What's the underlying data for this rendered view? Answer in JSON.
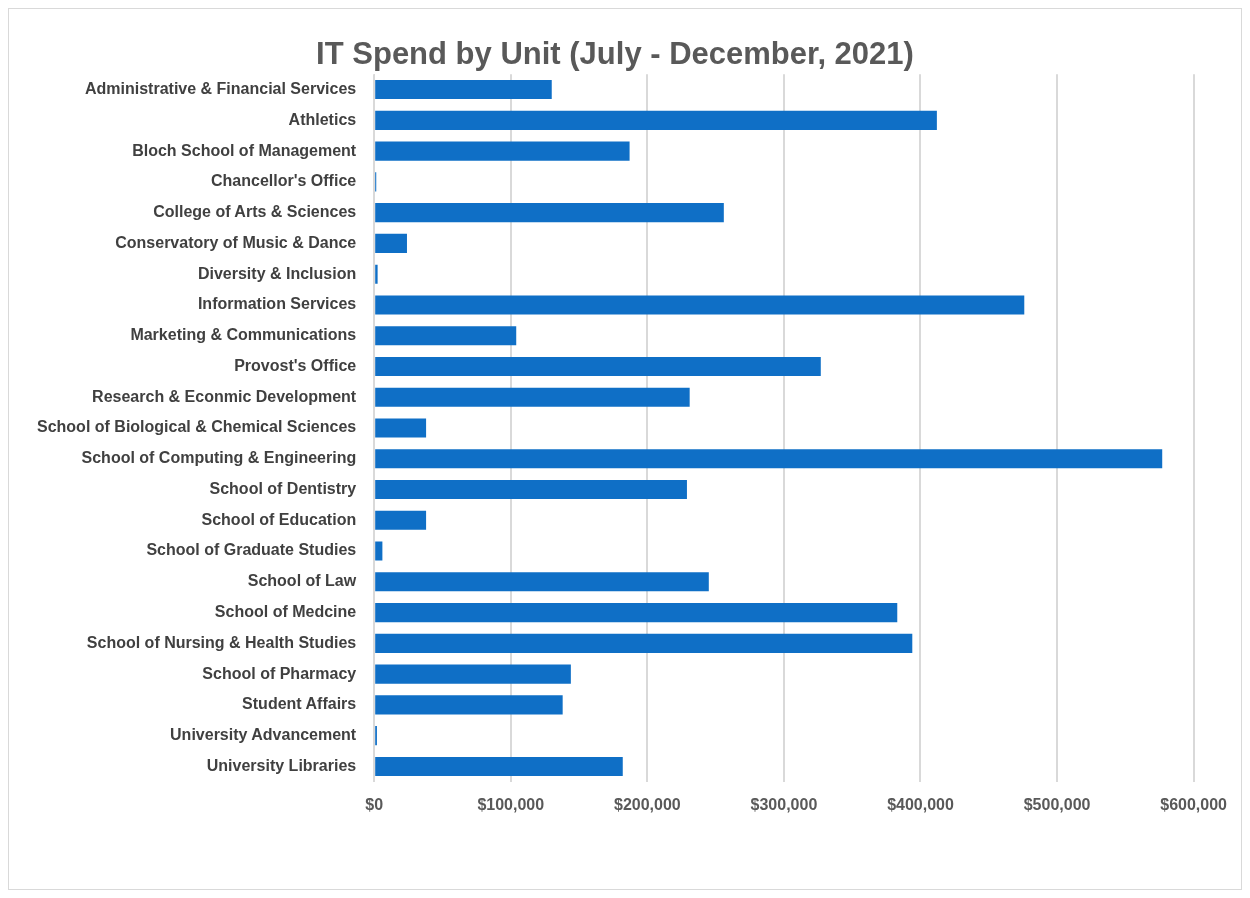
{
  "chart_data": {
    "type": "bar",
    "orientation": "horizontal",
    "title": "IT Spend by Unit (July - December, 2021)",
    "categories": [
      "Administrative & Financial Services",
      "Athletics",
      "Bloch School of Management",
      "Chancellor's Office",
      "College of Arts & Sciences",
      "Conservatory of Music & Dance",
      "Diversity & Inclusion",
      "Information Services",
      "Marketing & Communications",
      "Provost's Office",
      "Research & Econmic Development",
      "School of Biological & Chemical Sciences",
      "School of Computing & Engineering",
      "School of Dentistry",
      "School of Education",
      "School of Graduate Studies",
      "School of Law",
      "School of Medcine",
      "School of Nursing & Health Studies",
      "School of Pharmacy",
      "Student Affairs",
      "University Advancement",
      "University Libraries"
    ],
    "values": [
      130000,
      412000,
      187000,
      1500,
      256000,
      24000,
      2500,
      476000,
      104000,
      327000,
      231000,
      38000,
      577000,
      229000,
      38000,
      6000,
      245000,
      383000,
      394000,
      144000,
      138000,
      2000,
      182000
    ],
    "color": "#0f6fc6",
    "xlim": [
      0,
      600000
    ],
    "xticks": [
      {
        "value": 0,
        "label": "$0"
      },
      {
        "value": 100000,
        "label": "$100,000"
      },
      {
        "value": 200000,
        "label": "$200,000"
      },
      {
        "value": 300000,
        "label": "$300,000"
      },
      {
        "value": 400000,
        "label": "$400,000"
      },
      {
        "value": 500000,
        "label": "$500,000"
      },
      {
        "value": 600000,
        "label": "$600,000"
      }
    ],
    "grid": "x",
    "legend": false
  }
}
